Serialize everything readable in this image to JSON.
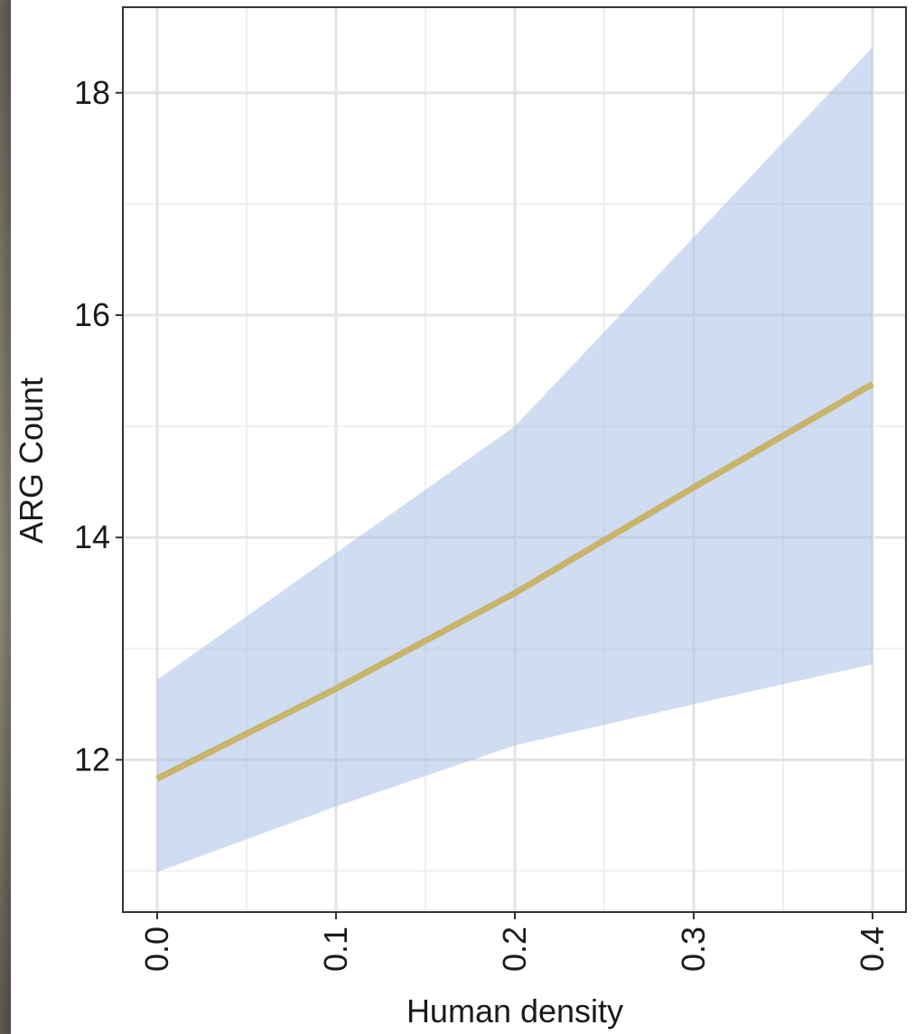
{
  "chart_data": {
    "type": "line",
    "x_label": "Human density",
    "y_label": "ARG Count",
    "x": [
      0,
      0.1,
      0.2,
      0.3,
      0.4
    ],
    "values": [
      11.83,
      12.64,
      13.5,
      14.45,
      15.38
    ],
    "lower": [
      10.99,
      11.58,
      12.13,
      12.5,
      12.86
    ],
    "upper": [
      12.72,
      13.86,
      15.0,
      16.7,
      18.41
    ],
    "color": "#c8b46a",
    "band_color": "#a9c0e6",
    "xlim": [
      -0.0192,
      0.4187
    ],
    "ylim": [
      10.63,
      18.77
    ],
    "xticks": [
      {
        "value": 0,
        "label": "0.0"
      },
      0.1,
      0.2,
      0.3,
      0.4
    ],
    "yticks": [
      12,
      14,
      16,
      18
    ],
    "grid": true,
    "minor_grid": true
  }
}
